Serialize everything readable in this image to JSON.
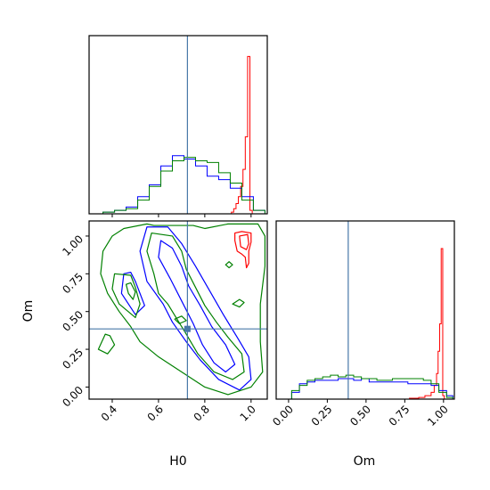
{
  "chart_data": {
    "type": "corner",
    "parameters": [
      "H0",
      "Om"
    ],
    "truth": {
      "H0": 0.725,
      "Om": 0.385
    },
    "colors": {
      "truth": "#4878a8",
      "series_1": "#ff0000",
      "series_2": "#0000ff",
      "series_3": "#008000"
    },
    "panels": [
      {
        "id": "h0_marginal",
        "type": "step_histogram",
        "xlim": [
          0.3,
          1.07
        ],
        "ylim": [
          0,
          1.0
        ],
        "series": [
          {
            "color": "#ff0000",
            "x": [
              0.905,
              0.915,
              0.925,
              0.935,
              0.945,
              0.955,
              0.965,
              0.975,
              0.985,
              0.995,
              1.005
            ],
            "y": [
              0.0,
              0.01,
              0.03,
              0.06,
              0.1,
              0.16,
              0.26,
              0.45,
              0.92,
              0.02,
              0.0
            ]
          },
          {
            "color": "#0000ff",
            "x": [
              0.31,
              0.36,
              0.41,
              0.46,
              0.51,
              0.56,
              0.61,
              0.66,
              0.71,
              0.76,
              0.81,
              0.86,
              0.91,
              0.96,
              1.01,
              1.06
            ],
            "y": [
              0.0,
              0.01,
              0.02,
              0.04,
              0.1,
              0.17,
              0.28,
              0.34,
              0.32,
              0.28,
              0.22,
              0.2,
              0.15,
              0.1,
              0.02,
              0.0
            ]
          },
          {
            "color": "#008000",
            "x": [
              0.31,
              0.36,
              0.41,
              0.46,
              0.51,
              0.56,
              0.61,
              0.66,
              0.71,
              0.76,
              0.81,
              0.86,
              0.91,
              0.96,
              1.01,
              1.06
            ],
            "y": [
              0.0,
              0.01,
              0.02,
              0.03,
              0.08,
              0.16,
              0.25,
              0.31,
              0.33,
              0.31,
              0.3,
              0.24,
              0.18,
              0.08,
              0.02,
              0.0
            ]
          }
        ]
      },
      {
        "id": "om_marginal",
        "type": "step_histogram",
        "xlim": [
          -0.08,
          1.07
        ],
        "ylim": [
          0,
          1.0
        ],
        "xticks": [
          "0.00",
          "0.25",
          "0.50",
          "0.75",
          "1.00"
        ],
        "xtick_values": [
          0.0,
          0.25,
          0.5,
          0.75,
          1.0
        ],
        "xlabel": "Om",
        "series": [
          {
            "color": "#ff0000",
            "x": [
              0.7,
              0.78,
              0.84,
              0.88,
              0.92,
              0.94,
              0.955,
              0.965,
              0.975,
              0.985,
              0.995,
              1.005
            ],
            "y": [
              0.0,
              0.005,
              0.01,
              0.02,
              0.04,
              0.08,
              0.15,
              0.28,
              0.44,
              0.88,
              0.02,
              0.0
            ]
          },
          {
            "color": "#0000ff",
            "x": [
              -0.03,
              0.02,
              0.07,
              0.12,
              0.17,
              0.22,
              0.27,
              0.32,
              0.37,
              0.42,
              0.47,
              0.52,
              0.57,
              0.62,
              0.67,
              0.72,
              0.77,
              0.82,
              0.87,
              0.92,
              0.97,
              1.02,
              1.06
            ],
            "y": [
              0.0,
              0.04,
              0.09,
              0.1,
              0.11,
              0.11,
              0.11,
              0.12,
              0.12,
              0.11,
              0.12,
              0.1,
              0.1,
              0.1,
              0.1,
              0.1,
              0.09,
              0.09,
              0.09,
              0.08,
              0.05,
              0.02,
              0.0
            ]
          },
          {
            "color": "#008000",
            "x": [
              -0.03,
              0.02,
              0.07,
              0.12,
              0.17,
              0.22,
              0.27,
              0.32,
              0.37,
              0.42,
              0.47,
              0.52,
              0.57,
              0.62,
              0.67,
              0.72,
              0.77,
              0.82,
              0.87,
              0.92,
              0.97,
              1.02,
              1.06
            ],
            "y": [
              0.0,
              0.05,
              0.08,
              0.11,
              0.12,
              0.13,
              0.14,
              0.13,
              0.14,
              0.13,
              0.12,
              0.12,
              0.11,
              0.11,
              0.12,
              0.12,
              0.12,
              0.12,
              0.11,
              0.09,
              0.04,
              0.01,
              0.0
            ]
          }
        ]
      },
      {
        "id": "om_vs_h0",
        "type": "contour",
        "xlim": [
          0.3,
          1.07
        ],
        "ylim": [
          -0.08,
          1.1
        ],
        "xticks": [
          "0.4",
          "0.6",
          "0.8",
          "1.0"
        ],
        "xtick_values": [
          0.4,
          0.6,
          0.8,
          1.0
        ],
        "yticks": [
          "0.00",
          "0.25",
          "0.50",
          "0.75",
          "1.00"
        ],
        "ytick_values": [
          0.0,
          0.25,
          0.5,
          0.75,
          1.0
        ],
        "xlabel": "H0",
        "ylabel": "Om",
        "contours": [
          {
            "color": "#ff0000",
            "points": [
              [
                0.93,
                1.02
              ],
              [
                0.96,
                1.03
              ],
              [
                1.0,
                1.02
              ],
              [
                1.0,
                0.96
              ],
              [
                0.99,
                0.9
              ],
              [
                0.99,
                0.82
              ],
              [
                0.98,
                0.79
              ],
              [
                0.975,
                0.86
              ],
              [
                0.96,
                0.88
              ],
              [
                0.94,
                0.9
              ],
              [
                0.93,
                0.97
              ]
            ]
          },
          {
            "color": "#ff0000",
            "points": [
              [
                0.95,
                1.0
              ],
              [
                0.985,
                1.01
              ],
              [
                0.99,
                0.95
              ],
              [
                0.98,
                0.91
              ],
              [
                0.955,
                0.93
              ]
            ]
          },
          {
            "color": "#0000ff",
            "points": [
              [
                0.55,
                1.06
              ],
              [
                0.52,
                0.9
              ],
              [
                0.55,
                0.7
              ],
              [
                0.62,
                0.55
              ],
              [
                0.66,
                0.43
              ],
              [
                0.72,
                0.3
              ],
              [
                0.78,
                0.18
              ],
              [
                0.86,
                0.05
              ],
              [
                0.95,
                -0.02
              ],
              [
                1.0,
                0.05
              ],
              [
                0.99,
                0.2
              ],
              [
                0.94,
                0.33
              ],
              [
                0.88,
                0.48
              ],
              [
                0.82,
                0.64
              ],
              [
                0.76,
                0.8
              ],
              [
                0.7,
                0.95
              ],
              [
                0.64,
                1.06
              ]
            ]
          },
          {
            "color": "#0000ff",
            "points": [
              [
                0.61,
                0.97
              ],
              [
                0.6,
                0.86
              ],
              [
                0.65,
                0.72
              ],
              [
                0.7,
                0.57
              ],
              [
                0.75,
                0.42
              ],
              [
                0.79,
                0.28
              ],
              [
                0.84,
                0.16
              ],
              [
                0.89,
                0.1
              ],
              [
                0.93,
                0.15
              ],
              [
                0.89,
                0.28
              ],
              [
                0.83,
                0.4
              ],
              [
                0.78,
                0.54
              ],
              [
                0.73,
                0.67
              ],
              [
                0.7,
                0.8
              ],
              [
                0.66,
                0.92
              ]
            ]
          },
          {
            "color": "#0000ff",
            "points": [
              [
                0.45,
                0.75
              ],
              [
                0.44,
                0.62
              ],
              [
                0.47,
                0.55
              ],
              [
                0.5,
                0.48
              ],
              [
                0.54,
                0.54
              ],
              [
                0.52,
                0.62
              ],
              [
                0.5,
                0.7
              ],
              [
                0.48,
                0.76
              ]
            ]
          },
          {
            "color": "#008000",
            "points": [
              [
                0.55,
                1.08
              ],
              [
                0.58,
                1.07
              ],
              [
                0.75,
                1.07
              ],
              [
                0.8,
                1.05
              ],
              [
                0.9,
                1.08
              ],
              [
                1.03,
                1.08
              ],
              [
                1.06,
                1.0
              ],
              [
                1.06,
                0.8
              ],
              [
                1.04,
                0.55
              ],
              [
                1.04,
                0.3
              ],
              [
                1.05,
                0.1
              ],
              [
                1.0,
                0.0
              ],
              [
                0.9,
                -0.05
              ],
              [
                0.8,
                0.0
              ],
              [
                0.7,
                0.1
              ],
              [
                0.6,
                0.2
              ],
              [
                0.52,
                0.3
              ],
              [
                0.48,
                0.4
              ],
              [
                0.43,
                0.5
              ],
              [
                0.38,
                0.62
              ],
              [
                0.35,
                0.75
              ],
              [
                0.36,
                0.9
              ],
              [
                0.4,
                1.0
              ],
              [
                0.45,
                1.05
              ]
            ]
          },
          {
            "color": "#008000",
            "points": [
              [
                0.57,
                1.02
              ],
              [
                0.55,
                0.9
              ],
              [
                0.58,
                0.75
              ],
              [
                0.6,
                0.62
              ],
              [
                0.64,
                0.55
              ],
              [
                0.68,
                0.45
              ],
              [
                0.72,
                0.35
              ],
              [
                0.77,
                0.22
              ],
              [
                0.84,
                0.1
              ],
              [
                0.92,
                0.05
              ],
              [
                0.97,
                0.1
              ],
              [
                0.96,
                0.22
              ],
              [
                0.9,
                0.33
              ],
              [
                0.85,
                0.43
              ],
              [
                0.8,
                0.54
              ],
              [
                0.76,
                0.66
              ],
              [
                0.72,
                0.78
              ],
              [
                0.7,
                0.9
              ],
              [
                0.66,
                1.0
              ]
            ]
          },
          {
            "color": "#008000",
            "points": [
              [
                0.41,
                0.75
              ],
              [
                0.4,
                0.65
              ],
              [
                0.43,
                0.55
              ],
              [
                0.5,
                0.46
              ],
              [
                0.52,
                0.55
              ],
              [
                0.5,
                0.66
              ],
              [
                0.48,
                0.74
              ]
            ]
          },
          {
            "color": "#008000",
            "points": [
              [
                0.37,
                0.35
              ],
              [
                0.34,
                0.25
              ],
              [
                0.38,
                0.22
              ],
              [
                0.41,
                0.28
              ],
              [
                0.39,
                0.34
              ]
            ]
          },
          {
            "color": "#008000",
            "points": [
              [
                0.46,
                0.68
              ],
              [
                0.47,
                0.62
              ],
              [
                0.49,
                0.58
              ],
              [
                0.5,
                0.63
              ],
              [
                0.48,
                0.69
              ]
            ]
          },
          {
            "color": "#008000",
            "points": [
              [
                0.92,
                0.55
              ],
              [
                0.95,
                0.58
              ],
              [
                0.97,
                0.56
              ],
              [
                0.95,
                0.53
              ]
            ]
          },
          {
            "color": "#008000",
            "points": [
              [
                0.89,
                0.81
              ],
              [
                0.905,
                0.83
              ],
              [
                0.92,
                0.81
              ],
              [
                0.905,
                0.79
              ]
            ]
          },
          {
            "color": "#008000",
            "points": [
              [
                0.67,
                0.45
              ],
              [
                0.7,
                0.47
              ],
              [
                0.72,
                0.44
              ],
              [
                0.69,
                0.42
              ]
            ]
          }
        ]
      }
    ]
  }
}
